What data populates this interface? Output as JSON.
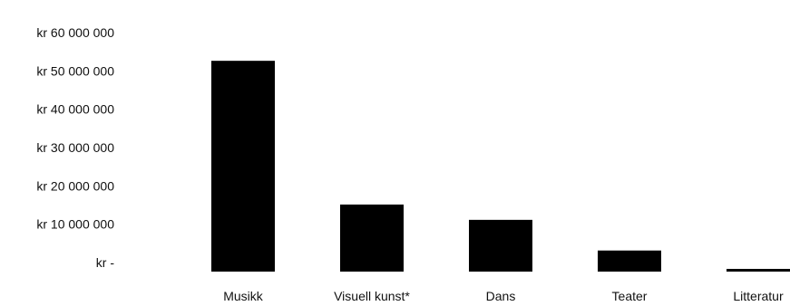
{
  "chart_data": {
    "type": "bar",
    "categories": [
      "Musikk",
      "Visuell kunst*",
      "Dans",
      "Teater",
      "Litteratur"
    ],
    "values": [
      55000000,
      17500000,
      13500000,
      5500000,
      700000
    ],
    "ylim": [
      0,
      60000000
    ],
    "ytick_values": [
      0,
      10000000,
      20000000,
      30000000,
      40000000,
      50000000,
      60000000
    ],
    "ytick_labels": [
      "kr -",
      "kr 10 000 000",
      "kr 20 000 000",
      "kr 30 000 000",
      "kr 40 000 000",
      "kr 50 000 000",
      "kr 60 000 000"
    ],
    "title": "",
    "xlabel": "",
    "ylabel": "",
    "grid": false,
    "legend": "none",
    "bar_color": "#000000"
  }
}
